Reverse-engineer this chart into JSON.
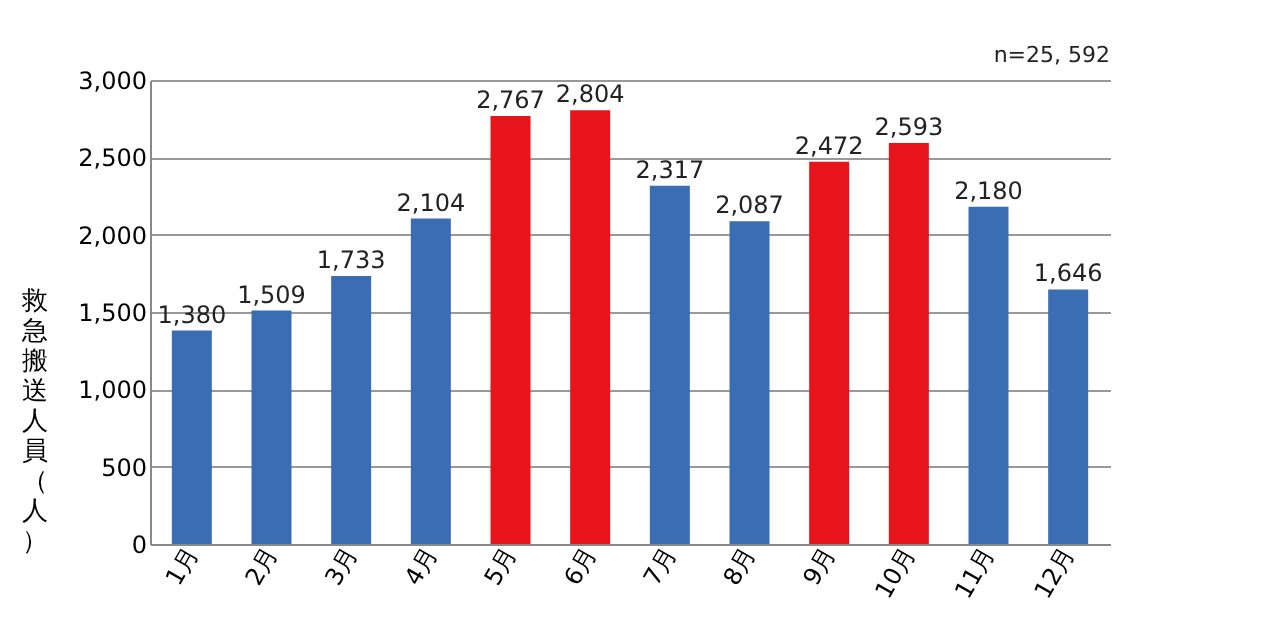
{
  "chart_data": {
    "type": "bar",
    "ylabel": "救急搬送人員（人）",
    "annotations": [
      "n=25, 592"
    ],
    "categories": [
      "1月",
      "2月",
      "3月",
      "4月",
      "5月",
      "6月",
      "7月",
      "8月",
      "9月",
      "10月",
      "11月",
      "12月"
    ],
    "values": [
      1380,
      1509,
      1733,
      2104,
      2767,
      2804,
      2317,
      2087,
      2472,
      2593,
      2180,
      1646
    ],
    "colors": [
      "#3b6db5",
      "#3b6db5",
      "#3b6db5",
      "#3b6db5",
      "#e8141c",
      "#e8141c",
      "#3b6db5",
      "#3b6db5",
      "#e8141c",
      "#e8141c",
      "#3b6db5",
      "#3b6db5"
    ],
    "value_labels": [
      "1,380",
      "1,509",
      "1,733",
      "2,104",
      "2,767",
      "2,804",
      "2,317",
      "2,087",
      "2,472",
      "2,593",
      "2,180",
      "1,646"
    ],
    "ylim": [
      0,
      3000
    ],
    "yticks": [
      0,
      {
        "value": 500,
        "label": "500"
      },
      {
        "value": 1000,
        "label": "1,000"
      },
      {
        "value": 1500,
        "label": "1,500"
      },
      {
        "value": 2000,
        "label": "2,000"
      },
      {
        "value": 2500,
        "label": "2,500"
      },
      {
        "value": 3000,
        "label": "3,000"
      }
    ],
    "grid": "y"
  }
}
